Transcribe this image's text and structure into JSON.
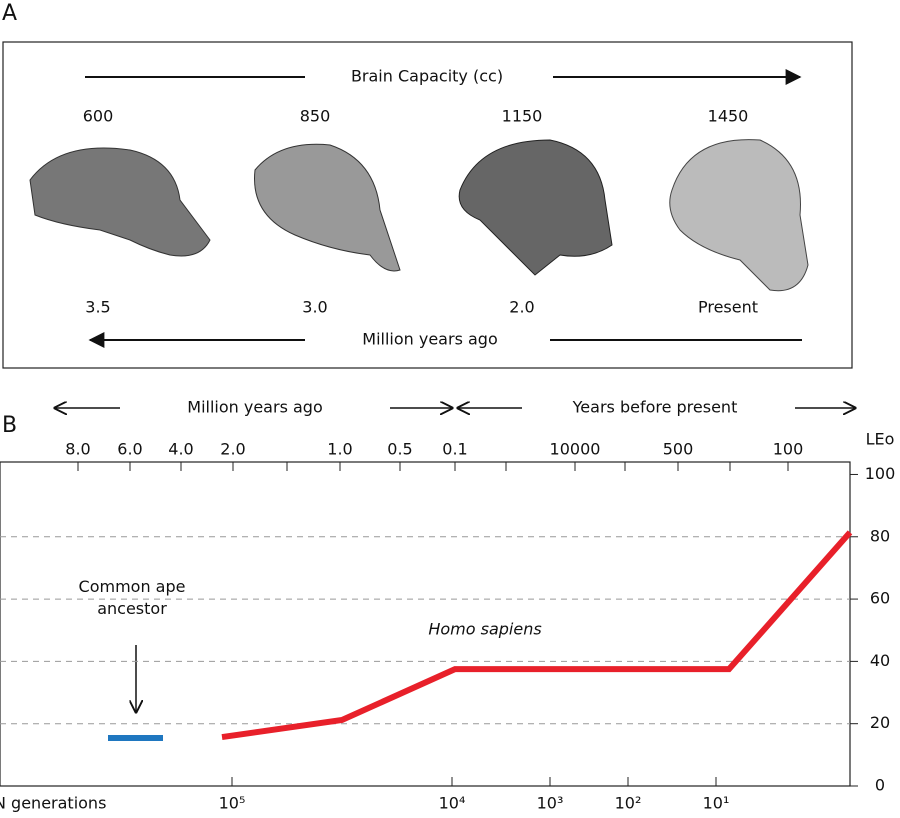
{
  "panel_a": {
    "label": "A",
    "top_arrow_label": "Brain Capacity (cc)",
    "capacities": [
      "600",
      "850",
      "1150",
      "1450"
    ],
    "ages": [
      "3.5",
      "3.0",
      "2.0",
      "Present"
    ],
    "bottom_arrow_label": "Million years ago"
  },
  "chart_data": {
    "type": "line",
    "panel_label": "B",
    "header_left": "Million years ago",
    "header_right": "Years before present",
    "y_label": "LEo",
    "x_label_bottom": "N generations",
    "annotations": [
      "Common ape ancestor",
      "Homo sapiens"
    ],
    "xlim": [
      0,
      85
    ],
    "ylim": [
      0,
      104
    ],
    "xticks": [
      {
        "value": 7.8,
        "label": "8.0"
      },
      {
        "value": 13,
        "label": "6.0"
      },
      {
        "value": 18.1,
        "label": "4.0"
      },
      {
        "value": 23.3,
        "label": "2.0"
      },
      {
        "value": 34,
        "label": "1.0"
      },
      {
        "value": 40,
        "label": "0.5"
      },
      {
        "value": 45.5,
        "label": "0.1"
      },
      {
        "value": 57.5,
        "label": "10000"
      },
      {
        "value": 67.8,
        "label": "500"
      },
      {
        "value": 78.8,
        "label": "100"
      }
    ],
    "xminor_ticks": [
      28.7,
      50.6,
      62.5,
      73
    ],
    "x2ticks": [
      {
        "value": 23.2,
        "label": "10⁵"
      },
      {
        "value": 45.2,
        "label": "10⁴"
      },
      {
        "value": 55,
        "label": "10³"
      },
      {
        "value": 62.8,
        "label": "10²"
      },
      {
        "value": 71.6,
        "label": "10¹"
      }
    ],
    "yticks": [
      0,
      20,
      40,
      60,
      80,
      100
    ],
    "grid": true,
    "series": [
      {
        "color": "#e8202a",
        "x": [
          22.2,
          34.2,
          45.5,
          72.9,
          85
        ],
        "values": [
          15.7,
          21.2,
          37.5,
          37.5,
          81.4
        ]
      },
      {
        "color": "#1f77c0",
        "x": [
          10.8,
          16.3
        ],
        "values": [
          15.4,
          15.4
        ]
      }
    ]
  }
}
